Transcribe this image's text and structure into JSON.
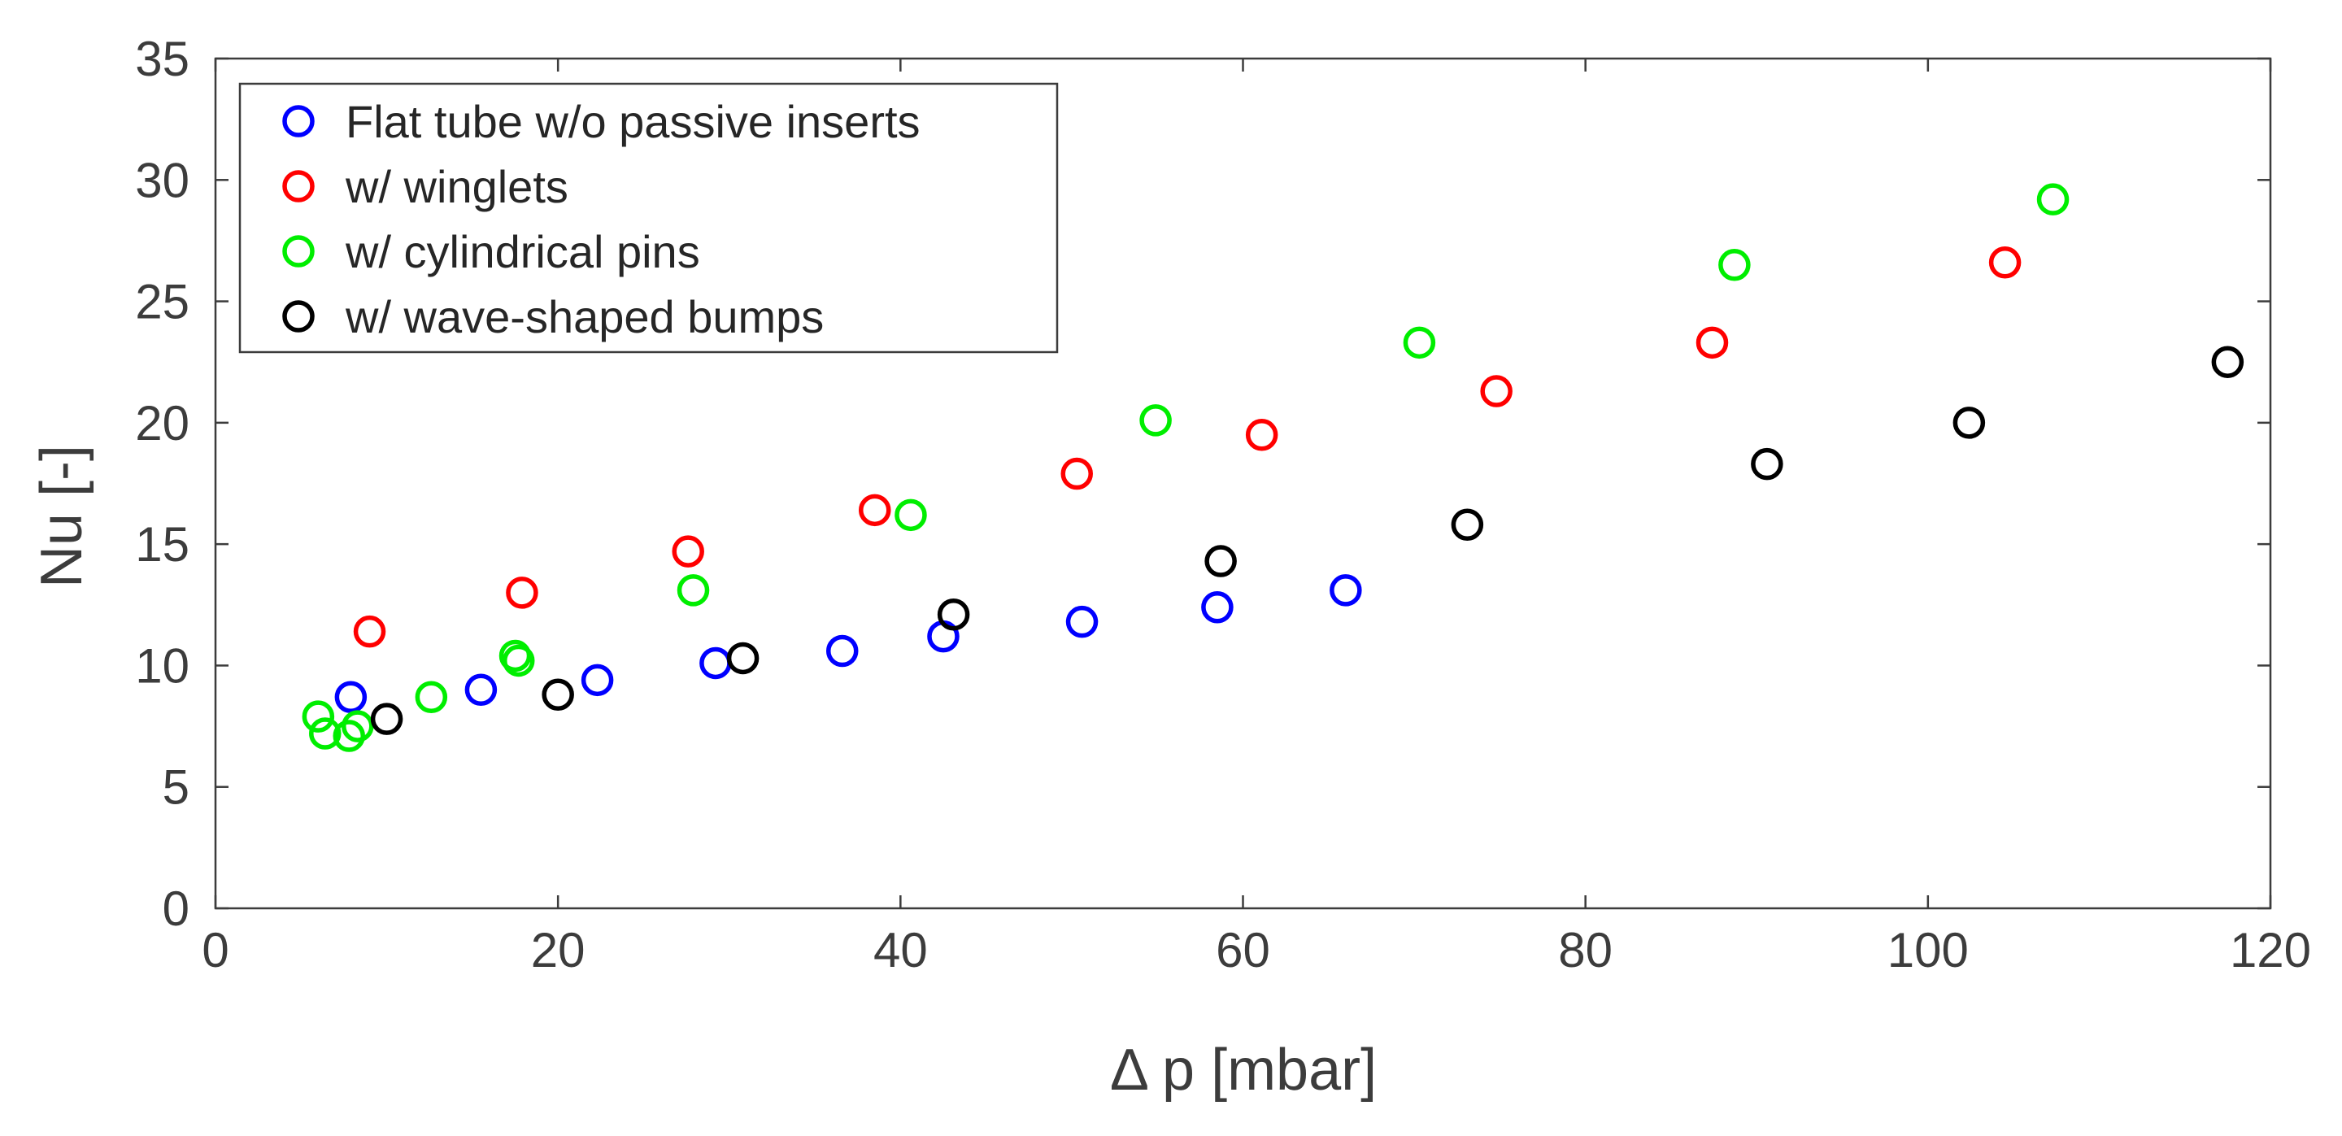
{
  "chart_data": {
    "type": "scatter",
    "title": "",
    "xlabel": "Δ p [mbar]",
    "ylabel": "Nu [-]",
    "xlim": [
      0,
      120
    ],
    "ylim": [
      0,
      35
    ],
    "xticks": [
      0,
      20,
      40,
      60,
      80,
      100,
      120
    ],
    "yticks": [
      0,
      5,
      10,
      15,
      20,
      25,
      30,
      35
    ],
    "grid": false,
    "legend_position": "top-left",
    "series": [
      {
        "name": "Flat tube w/o passive inserts",
        "color": "#0000ff",
        "marker": "open-circle",
        "points": [
          {
            "x": 7.9,
            "y": 8.7
          },
          {
            "x": 15.5,
            "y": 9.0
          },
          {
            "x": 22.3,
            "y": 9.4
          },
          {
            "x": 29.2,
            "y": 10.1
          },
          {
            "x": 36.6,
            "y": 10.6
          },
          {
            "x": 42.5,
            "y": 11.2
          },
          {
            "x": 50.6,
            "y": 11.8
          },
          {
            "x": 58.5,
            "y": 12.4
          },
          {
            "x": 66.0,
            "y": 13.1
          }
        ]
      },
      {
        "name": "w/ winglets",
        "color": "#ff0000",
        "marker": "open-circle",
        "points": [
          {
            "x": 9.0,
            "y": 11.4
          },
          {
            "x": 17.9,
            "y": 13.0
          },
          {
            "x": 27.6,
            "y": 14.7
          },
          {
            "x": 38.5,
            "y": 16.4
          },
          {
            "x": 50.3,
            "y": 17.9
          },
          {
            "x": 61.1,
            "y": 19.5
          },
          {
            "x": 74.8,
            "y": 21.3
          },
          {
            "x": 87.4,
            "y": 23.3
          },
          {
            "x": 104.5,
            "y": 26.6
          }
        ]
      },
      {
        "name": "w/ cylindrical pins",
        "color": "#00ee00",
        "marker": "open-circle",
        "points": [
          {
            "x": 6.0,
            "y": 7.9
          },
          {
            "x": 6.4,
            "y": 7.2
          },
          {
            "x": 7.8,
            "y": 7.1
          },
          {
            "x": 8.3,
            "y": 7.5
          },
          {
            "x": 12.6,
            "y": 8.7
          },
          {
            "x": 17.5,
            "y": 10.4
          },
          {
            "x": 17.7,
            "y": 10.2
          },
          {
            "x": 27.9,
            "y": 13.1
          },
          {
            "x": 40.6,
            "y": 16.2
          },
          {
            "x": 54.9,
            "y": 20.1
          },
          {
            "x": 70.3,
            "y": 23.3
          },
          {
            "x": 88.7,
            "y": 26.5
          },
          {
            "x": 107.3,
            "y": 29.2
          }
        ]
      },
      {
        "name": "w/ wave-shaped bumps",
        "color": "#000000",
        "marker": "open-circle",
        "points": [
          {
            "x": 10.0,
            "y": 7.8
          },
          {
            "x": 20.0,
            "y": 8.8
          },
          {
            "x": 30.8,
            "y": 10.3
          },
          {
            "x": 43.1,
            "y": 12.1
          },
          {
            "x": 58.7,
            "y": 14.3
          },
          {
            "x": 73.1,
            "y": 15.8
          },
          {
            "x": 90.6,
            "y": 18.3
          },
          {
            "x": 102.4,
            "y": 20.0
          },
          {
            "x": 117.5,
            "y": 22.5
          }
        ]
      }
    ]
  }
}
